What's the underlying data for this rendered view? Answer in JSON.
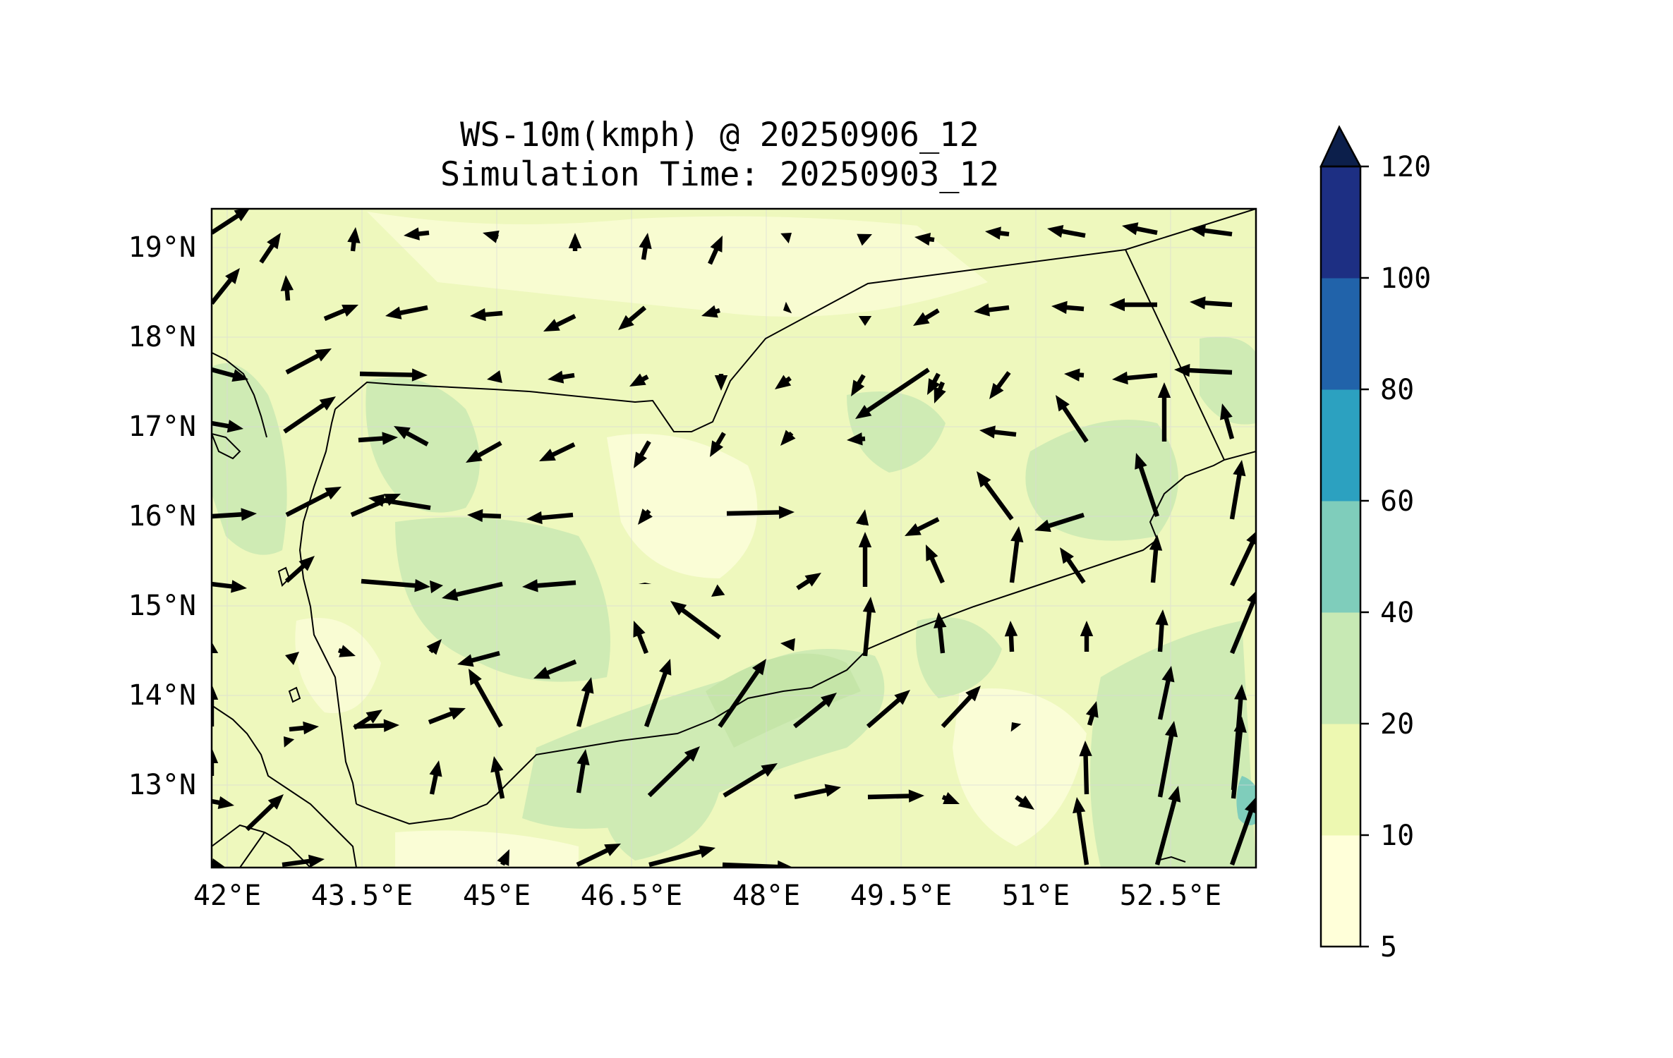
{
  "title": {
    "line1": "WS-10m(kmph) @ 20250906_12",
    "line2": "Simulation Time: 20250903_12"
  },
  "map": {
    "lon_ticks": [
      "42°E",
      "43.5°E",
      "45°E",
      "46.5°E",
      "48°E",
      "49.5°E",
      "51°E",
      "52.5°E"
    ],
    "lat_ticks": [
      "19°N",
      "18°N",
      "17°N",
      "16°N",
      "15°N",
      "14°N",
      "13°N"
    ],
    "lon_values": [
      42,
      43.5,
      45,
      46.5,
      48,
      49.5,
      51,
      52.5
    ],
    "lat_values": [
      19,
      18,
      17,
      16,
      15,
      14,
      13
    ],
    "extent": {
      "lon": [
        41.9,
        53.8
      ],
      "lat": [
        12.1,
        19.5
      ]
    }
  },
  "colorbar": {
    "levels": [
      "5",
      "10",
      "20",
      "40",
      "60",
      "80",
      "100",
      "120"
    ],
    "colors": [
      "#ffffd9",
      "#edf8b1",
      "#c7e9b4",
      "#7fcdbb",
      "#2ca1c0",
      "#2163aa",
      "#1d2f83"
    ],
    "extend_color": "#0c1f4b"
  },
  "field_colors": {
    "background": "#eef8bd",
    "low": "#fbfdd8",
    "mid": "#cfebb4",
    "high": "#7fcdbb"
  }
}
